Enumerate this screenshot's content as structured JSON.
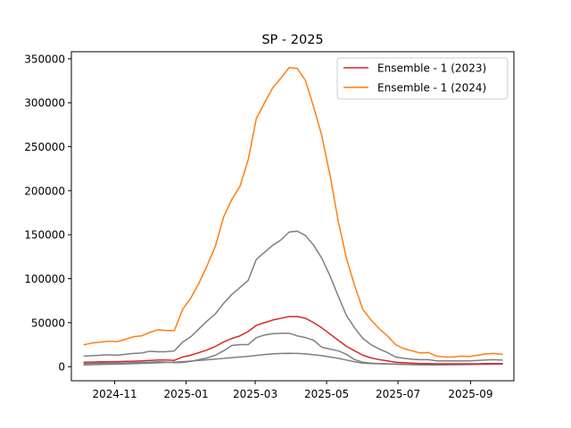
{
  "chart_data": {
    "type": "line",
    "title": "SP - 2025",
    "xlabel": "",
    "ylabel": "",
    "ylim": [
      -16000,
      358000
    ],
    "xlim": [
      "2024-09-25",
      "2025-10-08"
    ],
    "x_ticks": [
      {
        "date": "2024-11-01",
        "label": "2024-11"
      },
      {
        "date": "2025-01-01",
        "label": "2025-01"
      },
      {
        "date": "2025-03-01",
        "label": "2025-03"
      },
      {
        "date": "2025-05-01",
        "label": "2025-05"
      },
      {
        "date": "2025-07-01",
        "label": "2025-07"
      },
      {
        "date": "2025-09-01",
        "label": "2025-09"
      }
    ],
    "y_ticks": [
      {
        "value": 0,
        "label": "0"
      },
      {
        "value": 50000,
        "label": "50000"
      },
      {
        "value": 100000,
        "label": "100000"
      },
      {
        "value": 150000,
        "label": "150000"
      },
      {
        "value": 200000,
        "label": "200000"
      },
      {
        "value": 250000,
        "label": "250000"
      },
      {
        "value": 300000,
        "label": "300000"
      },
      {
        "value": 350000,
        "label": "350000"
      }
    ],
    "legend_position": "top-right",
    "grid": false,
    "x": [
      "2024-10-06",
      "2024-10-13",
      "2024-10-20",
      "2024-10-27",
      "2024-11-03",
      "2024-11-10",
      "2024-11-17",
      "2024-11-24",
      "2024-12-01",
      "2024-12-08",
      "2024-12-15",
      "2024-12-22",
      "2024-12-29",
      "2025-01-05",
      "2025-01-12",
      "2025-01-19",
      "2025-01-26",
      "2025-02-02",
      "2025-02-09",
      "2025-02-16",
      "2025-02-23",
      "2025-03-02",
      "2025-03-09",
      "2025-03-16",
      "2025-03-23",
      "2025-03-30",
      "2025-04-06",
      "2025-04-13",
      "2025-04-20",
      "2025-04-27",
      "2025-05-04",
      "2025-05-11",
      "2025-05-18",
      "2025-05-25",
      "2025-06-01",
      "2025-06-08",
      "2025-06-15",
      "2025-06-22",
      "2025-06-29",
      "2025-07-06",
      "2025-07-13",
      "2025-07-20",
      "2025-07-27",
      "2025-08-03",
      "2025-08-10",
      "2025-08-17",
      "2025-08-24",
      "2025-08-31",
      "2025-09-07",
      "2025-09-14",
      "2025-09-21",
      "2025-09-28"
    ],
    "series": [
      {
        "name": "",
        "legend": false,
        "color": "#7f7f7f",
        "values": [
          2000,
          2200,
          2500,
          2700,
          2900,
          3100,
          3400,
          3700,
          4000,
          4400,
          4800,
          5200,
          5700,
          6300,
          7000,
          7800,
          8600,
          9400,
          10200,
          11000,
          11800,
          12800,
          13800,
          14500,
          15000,
          15200,
          15000,
          14500,
          13500,
          12500,
          11000,
          9500,
          7500,
          5500,
          4000,
          3500,
          3200,
          3000,
          2800,
          2500,
          2300,
          2100,
          2000,
          2000,
          2100,
          2200,
          2300,
          2400,
          2500,
          2600,
          2700,
          2800
        ]
      },
      {
        "name": "",
        "legend": false,
        "color": "#7f7f7f",
        "values": [
          3500,
          3800,
          4000,
          4000,
          4200,
          4300,
          4500,
          4800,
          5000,
          5500,
          5200,
          4500,
          4800,
          6000,
          8000,
          10000,
          13000,
          18000,
          24000,
          25000,
          25000,
          33000,
          36000,
          37500,
          38000,
          38000,
          35000,
          33000,
          30000,
          22000,
          20000,
          18000,
          14000,
          8000,
          5000,
          4000,
          3500,
          3200,
          3000,
          2800,
          2500,
          2200,
          2000,
          2000,
          2200,
          2200,
          2500,
          2500,
          2800,
          3000,
          3200,
          3000
        ]
      },
      {
        "name": "",
        "legend": false,
        "color": "#7f7f7f",
        "values": [
          12000,
          12500,
          13000,
          13500,
          13000,
          14000,
          15000,
          15500,
          17500,
          17000,
          17000,
          18000,
          28000,
          34000,
          43000,
          52000,
          60000,
          72000,
          82000,
          90000,
          98000,
          122000,
          130000,
          138000,
          144000,
          153000,
          154000,
          149000,
          138000,
          123000,
          103000,
          80000,
          58000,
          44000,
          32000,
          25000,
          20000,
          16000,
          11000,
          9500,
          8500,
          8000,
          8000,
          6500,
          6500,
          6500,
          6500,
          6500,
          7000,
          7500,
          8000,
          7500
        ]
      },
      {
        "name": "Ensemble - 1 (2023)",
        "legend": true,
        "color": "#d62728",
        "values": [
          5000,
          5200,
          5500,
          5700,
          5700,
          6000,
          6200,
          6500,
          7000,
          7500,
          7500,
          7200,
          11000,
          13000,
          16000,
          19000,
          23000,
          28000,
          32000,
          35000,
          40000,
          47000,
          50000,
          53000,
          55000,
          57000,
          57000,
          55000,
          50000,
          44000,
          37000,
          30000,
          23000,
          18000,
          13000,
          10000,
          8000,
          6500,
          5000,
          4500,
          4000,
          3500,
          3500,
          3200,
          3200,
          3200,
          3200,
          3200,
          3200,
          3500,
          3500,
          3500
        ]
      },
      {
        "name": "Ensemble - 1 (2024)",
        "legend": true,
        "color": "#ff7f0e",
        "values": [
          25000,
          27000,
          28000,
          29000,
          28500,
          31000,
          34000,
          35000,
          39000,
          42000,
          41000,
          41000,
          65000,
          78000,
          95000,
          115000,
          137000,
          170000,
          190000,
          205000,
          235000,
          282000,
          300000,
          317000,
          328000,
          340000,
          339000,
          325000,
          295000,
          262000,
          217000,
          165000,
          123000,
          92000,
          65000,
          53000,
          43000,
          35000,
          25000,
          20500,
          18000,
          15500,
          16000,
          12000,
          11000,
          11000,
          12000,
          11500,
          13000,
          14500,
          15000,
          14000
        ]
      }
    ]
  }
}
